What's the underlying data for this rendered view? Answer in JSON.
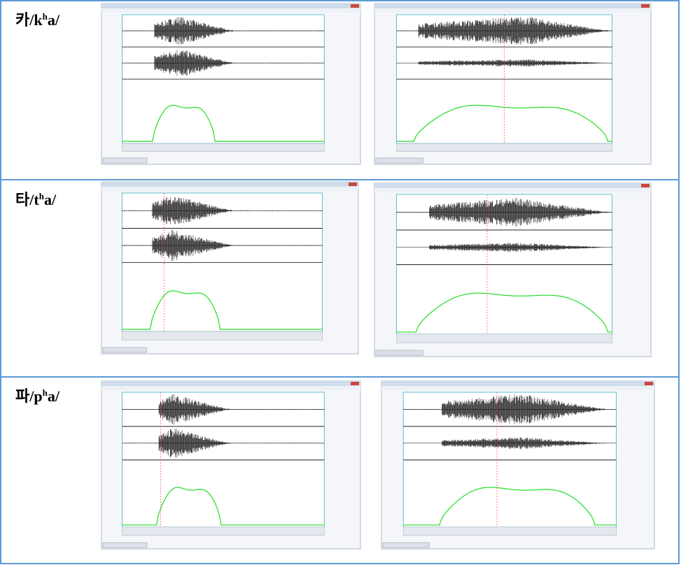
{
  "table": {
    "rows": [
      {
        "label": {
          "syllable": "카",
          "onset": "/k",
          "aspiration": "h",
          "rest": "a/"
        }
      },
      {
        "label": {
          "syllable": "타",
          "onset": "/t",
          "aspiration": "h",
          "rest": "a/"
        }
      },
      {
        "label": {
          "syllable": "파",
          "onset": "/p",
          "aspiration": "h",
          "rest": "a/"
        }
      }
    ]
  }
}
